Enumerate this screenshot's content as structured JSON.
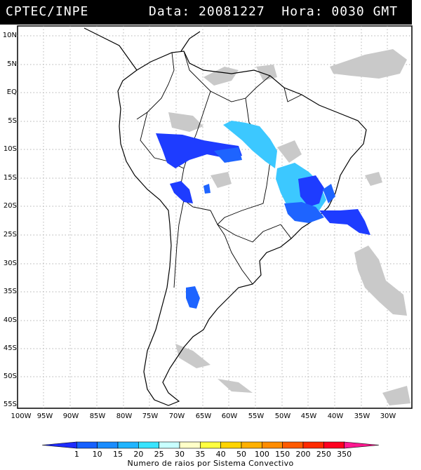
{
  "header": {
    "org": "CPTEC/INPE",
    "info": "Data: 20081227  Hora: 0030 GMT"
  },
  "axes": {
    "lat_labels": [
      "10N",
      "5N",
      "EQ",
      "5S",
      "10S",
      "15S",
      "20S",
      "25S",
      "30S",
      "35S",
      "40S",
      "45S",
      "50S",
      "55S"
    ],
    "lon_labels": [
      "100W",
      "95W",
      "90W",
      "85W",
      "80W",
      "75W",
      "70W",
      "65W",
      "60W",
      "55W",
      "50W",
      "45W",
      "40W",
      "35W",
      "30W"
    ]
  },
  "colorbar": {
    "ticks": [
      "1",
      "10",
      "15",
      "20",
      "25",
      "30",
      "35",
      "40",
      "50",
      "100",
      "150",
      "200",
      "250",
      "350"
    ],
    "colors": [
      "#1e2cff",
      "#1560ff",
      "#1a8cff",
      "#1fb4ff",
      "#38e4ff",
      "#c8ffff",
      "#ffffc8",
      "#ffff40",
      "#ffd400",
      "#ffb000",
      "#ff8c00",
      "#ff5a00",
      "#ff2a00",
      "#ff0020",
      "#ff1890"
    ],
    "title": "Numero de raios por Sistema Convectivo"
  },
  "legend_colors": {
    "land_cloud": "#c8c8c8",
    "blue_dark": "#1e3cff",
    "blue_mid": "#1e64ff",
    "cyan": "#3cc8ff"
  }
}
